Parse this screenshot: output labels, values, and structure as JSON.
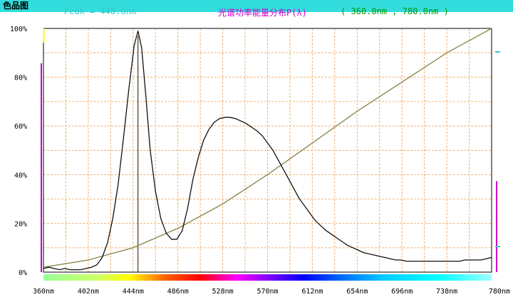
{
  "header": {
    "peak_text": "Peak = 448.6nm",
    "title": "光谱功率能量分布P(λ)",
    "range_text": "( 360.0nm , 780.0nm )",
    "button_label": "色品图"
  },
  "colors": {
    "spectrum_line": "#111111",
    "cumulative_line": "#8a8a50",
    "grid": "#f0b070",
    "peak_marker": "#111111",
    "left_bar": "#cc00cc",
    "right_bar": "#cc00cc",
    "top_marker": "#ffff00",
    "right_markers": "#33cccc"
  },
  "chart_data": {
    "type": "line",
    "title": "光谱功率能量分布P(λ)",
    "xlim": [
      360,
      780
    ],
    "ylim": [
      0,
      100
    ],
    "x_ticks": [
      "360nm",
      "402nm",
      "444nm",
      "486nm",
      "528nm",
      "570nm",
      "612nm",
      "654nm",
      "696nm",
      "738nm",
      "780nm"
    ],
    "y_ticks": [
      "0%",
      "20%",
      "40%",
      "60%",
      "80%",
      "100%"
    ],
    "grid": true,
    "peak_x": 448.6,
    "series": [
      {
        "key": "spectrum",
        "x": [
          360,
          365,
          370,
          375,
          380,
          385,
          390,
          395,
          400,
          405,
          410,
          415,
          420,
          425,
          430,
          435,
          440,
          445,
          448.6,
          452,
          456,
          460,
          465,
          470,
          475,
          480,
          485,
          490,
          495,
          500,
          505,
          510,
          515,
          520,
          525,
          530,
          535,
          540,
          545,
          550,
          555,
          560,
          565,
          570,
          575,
          580,
          585,
          590,
          595,
          600,
          605,
          610,
          615,
          620,
          625,
          630,
          635,
          640,
          645,
          650,
          655,
          660,
          665,
          670,
          675,
          680,
          685,
          690,
          695,
          700,
          705,
          710,
          715,
          720,
          725,
          730,
          735,
          740,
          745,
          750,
          755,
          760,
          765,
          770,
          775,
          780
        ],
        "y": [
          1.5,
          2,
          1.5,
          1,
          1.5,
          1,
          1,
          1,
          1.5,
          2,
          3,
          6,
          12,
          22,
          36,
          55,
          75,
          93,
          99,
          92,
          72,
          50,
          33,
          22,
          16,
          13.5,
          13.5,
          17,
          26,
          38,
          47,
          54,
          58.5,
          61.5,
          63,
          63.5,
          63.5,
          63,
          62,
          61,
          59.5,
          58,
          56,
          53,
          50,
          46,
          42,
          38,
          34,
          30,
          27,
          24,
          21,
          19,
          17,
          15.5,
          14,
          12.5,
          11,
          10,
          9,
          8,
          7.5,
          7,
          6.5,
          6,
          5.5,
          5,
          5,
          4.5,
          4.5,
          4.5,
          4.5,
          4.5,
          4.5,
          4.5,
          4.5,
          4.5,
          4.5,
          4.5,
          5,
          5,
          5,
          5,
          5.5,
          6
        ]
      },
      {
        "key": "cumulative",
        "x": [
          360,
          402,
          444,
          486,
          528,
          570,
          612,
          654,
          696,
          738,
          780
        ],
        "y": [
          2,
          5,
          10,
          18,
          28,
          40,
          53,
          66,
          78,
          90,
          100
        ]
      }
    ]
  }
}
